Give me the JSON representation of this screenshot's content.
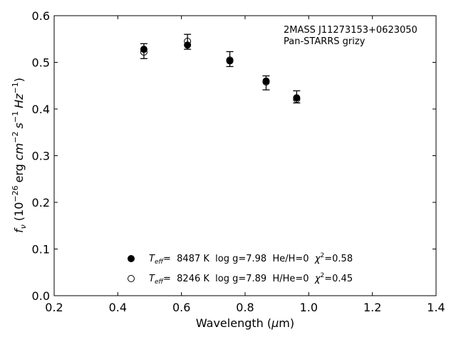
{
  "chart_data": {
    "type": "scatter",
    "title": "",
    "xlabel_main": "Wavelength (",
    "xlabel_mu": "μ",
    "xlabel_unit": "m)",
    "ylabel_f": "f",
    "ylabel_nu": "ν",
    "ylabel_open": "(10",
    "ylabel_exp1": "−26",
    "ylabel_erg": "erg",
    "ylabel_cm": "cm",
    "ylabel_exp2": "−2",
    "ylabel_s": "s",
    "ylabel_exp3": "−1",
    "ylabel_hz": "Hz",
    "ylabel_exp4": "−1",
    "ylabel_close": ")",
    "xlim": [
      0.2,
      1.4
    ],
    "ylim": [
      0.0,
      0.6
    ],
    "xticks": [
      "0.2",
      "0.4",
      "0.6",
      "0.8",
      "1.0",
      "1.2",
      "1.4"
    ],
    "yticks": [
      "0.0",
      "0.1",
      "0.2",
      "0.3",
      "0.4",
      "0.5",
      "0.6"
    ],
    "annotation": [
      "2MASS J11273153+0623050",
      "Pan-STARRS grizy"
    ],
    "observed": {
      "x": [
        0.482,
        0.619,
        0.752,
        0.866,
        0.962
      ],
      "y": [
        0.524,
        0.544,
        0.507,
        0.456,
        0.426
      ],
      "err": [
        0.016,
        0.016,
        0.016,
        0.015,
        0.013
      ]
    },
    "series": [
      {
        "marker": "filled-circle",
        "x": [
          0.482,
          0.619,
          0.752,
          0.866,
          0.962
        ],
        "y": [
          0.528,
          0.537,
          0.503,
          0.46,
          0.424
        ],
        "legend": {
          "t": "T",
          "eff": "eff",
          "value": "=  8487 K  log g=7.98  He/H=0  ",
          "chi": "χ",
          "sup": "2",
          "chi_value": "=0.58"
        }
      },
      {
        "marker": "open-circle",
        "x": [
          0.482,
          0.619,
          0.752,
          0.866,
          0.962
        ],
        "y": [
          0.522,
          0.545,
          0.505,
          0.458,
          0.421
        ],
        "legend": {
          "t": "T",
          "eff": "eff",
          "value": "=  8246 K  log g=7.89  H/He=0  ",
          "chi": "χ",
          "sup": "2",
          "chi_value": "=0.45"
        }
      }
    ],
    "legend_position": "lower-center"
  }
}
